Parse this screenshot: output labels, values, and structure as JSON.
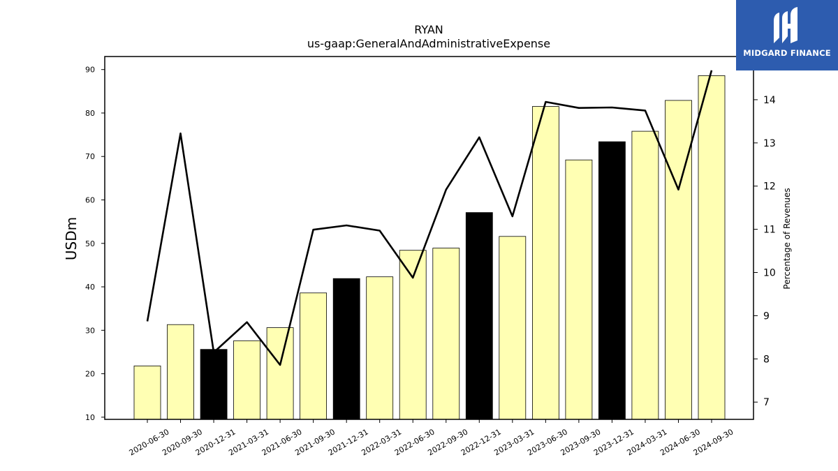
{
  "chart_data": {
    "type": "bar",
    "title": "RYAN",
    "subtitle": "us-gaap:GeneralAndAdministrativeExpense",
    "ylabel": "USDm",
    "ylabel_right": "Percentage of Revenues",
    "ylim": [
      9.5,
      93
    ],
    "ylim_right": [
      6.6,
      15
    ],
    "yticks": [
      10,
      20,
      30,
      40,
      50,
      60,
      70,
      80,
      90
    ],
    "yticks_right": [
      7,
      8,
      9,
      10,
      11,
      12,
      13,
      14
    ],
    "grid": false,
    "categories": [
      "2020-06-30",
      "2020-09-30",
      "2020-12-31",
      "2021-03-31",
      "2021-06-30",
      "2021-09-30",
      "2021-12-31",
      "2022-03-31",
      "2022-06-30",
      "2022-09-30",
      "2022-12-31",
      "2023-03-31",
      "2023-06-30",
      "2023-09-30",
      "2023-12-31",
      "2024-03-31",
      "2024-06-30",
      "2024-09-30"
    ],
    "series": [
      {
        "type": "bar",
        "axis": "left",
        "values": [
          21.8,
          31.3,
          25.6,
          27.6,
          30.6,
          38.6,
          41.9,
          42.3,
          48.4,
          48.9,
          57.1,
          51.6,
          81.5,
          69.2,
          73.4,
          75.8,
          82.9,
          88.6
        ],
        "highlight": [
          false,
          false,
          true,
          false,
          false,
          false,
          true,
          false,
          false,
          false,
          true,
          false,
          false,
          false,
          true,
          false,
          false,
          false
        ]
      },
      {
        "type": "line",
        "axis": "right",
        "values": [
          8.87,
          13.22,
          8.15,
          8.85,
          7.86,
          10.99,
          11.09,
          10.97,
          9.88,
          11.92,
          13.13,
          11.3,
          13.95,
          13.81,
          13.82,
          13.75,
          11.92,
          14.68
        ]
      }
    ],
    "colors": {
      "bar": "#ffffb3",
      "bar_highlight": "#000000",
      "line": "#000000"
    }
  },
  "logo": {
    "text": "MIDGARD FINANCE"
  }
}
